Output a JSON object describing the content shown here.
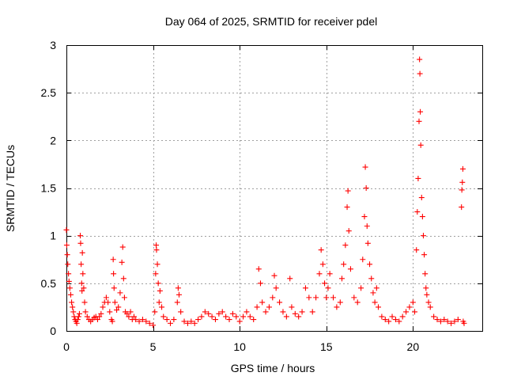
{
  "chart_data": {
    "type": "scatter",
    "title": "Day 064 of 2025, SRMTID for receiver pdel",
    "xlabel": "GPS time / hours",
    "ylabel": "SRMTID / TECUs",
    "xlim": [
      0,
      24
    ],
    "ylim": [
      0,
      3
    ],
    "xticks": [
      0,
      5,
      10,
      15,
      20
    ],
    "xtick_labels": [
      "0",
      "5",
      "10",
      "15",
      "20"
    ],
    "yticks": [
      0,
      0.5,
      1,
      1.5,
      2,
      2.5,
      3
    ],
    "ytick_labels": [
      "0",
      "0.5",
      "1",
      "1.5",
      "2",
      "2.5",
      "3"
    ],
    "grid": true,
    "marker": "plus",
    "series": [
      {
        "name": "SRMTID",
        "color": "#ff0000",
        "points": [
          [
            0.0,
            1.06
          ],
          [
            0.02,
            0.9
          ],
          [
            0.05,
            0.8
          ],
          [
            0.08,
            0.7
          ],
          [
            0.12,
            0.6
          ],
          [
            0.15,
            0.52
          ],
          [
            0.2,
            0.45
          ],
          [
            0.25,
            0.38
          ],
          [
            0.3,
            0.3
          ],
          [
            0.35,
            0.25
          ],
          [
            0.4,
            0.2
          ],
          [
            0.45,
            0.15
          ],
          [
            0.5,
            0.12
          ],
          [
            0.55,
            0.1
          ],
          [
            0.6,
            0.08
          ],
          [
            0.65,
            0.12
          ],
          [
            0.7,
            0.15
          ],
          [
            0.75,
            0.18
          ],
          [
            0.8,
            1.0
          ],
          [
            0.82,
            0.92
          ],
          [
            0.85,
            0.7
          ],
          [
            0.88,
            0.5
          ],
          [
            0.9,
            0.42
          ],
          [
            0.92,
            0.82
          ],
          [
            0.95,
            0.6
          ],
          [
            1.0,
            0.45
          ],
          [
            1.05,
            0.3
          ],
          [
            1.1,
            0.2
          ],
          [
            1.2,
            0.15
          ],
          [
            1.3,
            0.12
          ],
          [
            1.4,
            0.1
          ],
          [
            1.5,
            0.12
          ],
          [
            1.6,
            0.14
          ],
          [
            1.7,
            0.15
          ],
          [
            1.8,
            0.12
          ],
          [
            1.9,
            0.15
          ],
          [
            2.0,
            0.18
          ],
          [
            2.1,
            0.25
          ],
          [
            2.2,
            0.3
          ],
          [
            2.3,
            0.35
          ],
          [
            2.4,
            0.3
          ],
          [
            2.5,
            0.2
          ],
          [
            2.6,
            0.12
          ],
          [
            2.65,
            0.1
          ],
          [
            2.7,
            0.75
          ],
          [
            2.72,
            0.6
          ],
          [
            2.75,
            0.45
          ],
          [
            2.8,
            0.3
          ],
          [
            2.9,
            0.22
          ],
          [
            3.0,
            0.25
          ],
          [
            3.1,
            0.4
          ],
          [
            3.2,
            0.72
          ],
          [
            3.25,
            0.88
          ],
          [
            3.3,
            0.55
          ],
          [
            3.35,
            0.35
          ],
          [
            3.4,
            0.2
          ],
          [
            3.5,
            0.18
          ],
          [
            3.6,
            0.15
          ],
          [
            3.7,
            0.2
          ],
          [
            3.8,
            0.12
          ],
          [
            3.9,
            0.15
          ],
          [
            4.0,
            0.12
          ],
          [
            4.2,
            0.1
          ],
          [
            4.4,
            0.12
          ],
          [
            4.6,
            0.1
          ],
          [
            4.8,
            0.08
          ],
          [
            5.0,
            0.06
          ],
          [
            5.1,
            0.2
          ],
          [
            5.15,
            0.6
          ],
          [
            5.18,
            0.9
          ],
          [
            5.2,
            0.85
          ],
          [
            5.25,
            0.7
          ],
          [
            5.3,
            0.5
          ],
          [
            5.35,
            0.3
          ],
          [
            5.4,
            0.42
          ],
          [
            5.5,
            0.25
          ],
          [
            5.6,
            0.15
          ],
          [
            5.8,
            0.12
          ],
          [
            6.0,
            0.08
          ],
          [
            6.2,
            0.12
          ],
          [
            6.4,
            0.3
          ],
          [
            6.45,
            0.45
          ],
          [
            6.5,
            0.38
          ],
          [
            6.6,
            0.2
          ],
          [
            6.8,
            0.1
          ],
          [
            7.0,
            0.08
          ],
          [
            7.2,
            0.1
          ],
          [
            7.4,
            0.08
          ],
          [
            7.6,
            0.12
          ],
          [
            7.8,
            0.15
          ],
          [
            8.0,
            0.2
          ],
          [
            8.2,
            0.18
          ],
          [
            8.4,
            0.15
          ],
          [
            8.6,
            0.12
          ],
          [
            8.8,
            0.18
          ],
          [
            9.0,
            0.2
          ],
          [
            9.2,
            0.15
          ],
          [
            9.4,
            0.12
          ],
          [
            9.6,
            0.18
          ],
          [
            9.8,
            0.15
          ],
          [
            10.0,
            0.1
          ],
          [
            10.2,
            0.15
          ],
          [
            10.4,
            0.2
          ],
          [
            10.6,
            0.15
          ],
          [
            10.8,
            0.12
          ],
          [
            11.0,
            0.25
          ],
          [
            11.1,
            0.65
          ],
          [
            11.2,
            0.5
          ],
          [
            11.3,
            0.3
          ],
          [
            11.5,
            0.2
          ],
          [
            11.7,
            0.25
          ],
          [
            11.9,
            0.35
          ],
          [
            12.0,
            0.58
          ],
          [
            12.1,
            0.45
          ],
          [
            12.3,
            0.3
          ],
          [
            12.5,
            0.2
          ],
          [
            12.7,
            0.15
          ],
          [
            12.9,
            0.55
          ],
          [
            13.0,
            0.25
          ],
          [
            13.2,
            0.18
          ],
          [
            13.4,
            0.15
          ],
          [
            13.6,
            0.2
          ],
          [
            13.8,
            0.45
          ],
          [
            14.0,
            0.35
          ],
          [
            14.2,
            0.2
          ],
          [
            14.4,
            0.35
          ],
          [
            14.6,
            0.6
          ],
          [
            14.7,
            0.85
          ],
          [
            14.8,
            0.7
          ],
          [
            14.9,
            0.5
          ],
          [
            15.0,
            0.35
          ],
          [
            15.1,
            0.45
          ],
          [
            15.2,
            0.6
          ],
          [
            15.4,
            0.35
          ],
          [
            15.6,
            0.25
          ],
          [
            15.8,
            0.3
          ],
          [
            15.9,
            0.55
          ],
          [
            16.0,
            0.7
          ],
          [
            16.1,
            0.9
          ],
          [
            16.2,
            1.3
          ],
          [
            16.25,
            1.47
          ],
          [
            16.3,
            1.05
          ],
          [
            16.4,
            0.65
          ],
          [
            16.6,
            0.35
          ],
          [
            16.8,
            0.3
          ],
          [
            17.0,
            0.45
          ],
          [
            17.1,
            0.75
          ],
          [
            17.2,
            1.2
          ],
          [
            17.25,
            1.72
          ],
          [
            17.3,
            1.5
          ],
          [
            17.35,
            1.1
          ],
          [
            17.4,
            0.92
          ],
          [
            17.5,
            0.7
          ],
          [
            17.6,
            0.55
          ],
          [
            17.7,
            0.4
          ],
          [
            17.8,
            0.3
          ],
          [
            17.9,
            0.45
          ],
          [
            18.0,
            0.25
          ],
          [
            18.2,
            0.15
          ],
          [
            18.4,
            0.12
          ],
          [
            18.6,
            0.1
          ],
          [
            18.8,
            0.15
          ],
          [
            19.0,
            0.12
          ],
          [
            19.2,
            0.1
          ],
          [
            19.4,
            0.15
          ],
          [
            19.6,
            0.2
          ],
          [
            19.8,
            0.25
          ],
          [
            20.0,
            0.3
          ],
          [
            20.1,
            0.2
          ],
          [
            20.2,
            0.85
          ],
          [
            20.25,
            1.25
          ],
          [
            20.3,
            1.6
          ],
          [
            20.35,
            2.2
          ],
          [
            20.38,
            2.85
          ],
          [
            20.4,
            2.7
          ],
          [
            20.42,
            2.3
          ],
          [
            20.45,
            1.95
          ],
          [
            20.5,
            1.4
          ],
          [
            20.55,
            1.2
          ],
          [
            20.6,
            1.0
          ],
          [
            20.65,
            0.8
          ],
          [
            20.7,
            0.6
          ],
          [
            20.75,
            0.45
          ],
          [
            20.8,
            0.38
          ],
          [
            20.9,
            0.3
          ],
          [
            21.0,
            0.25
          ],
          [
            21.2,
            0.15
          ],
          [
            21.4,
            0.12
          ],
          [
            21.6,
            0.1
          ],
          [
            21.8,
            0.12
          ],
          [
            22.0,
            0.1
          ],
          [
            22.2,
            0.08
          ],
          [
            22.4,
            0.1
          ],
          [
            22.6,
            0.12
          ],
          [
            22.8,
            1.3
          ],
          [
            22.82,
            1.48
          ],
          [
            22.85,
            1.56
          ],
          [
            22.88,
            1.7
          ],
          [
            22.9,
            0.1
          ],
          [
            22.95,
            0.08
          ]
        ]
      }
    ]
  }
}
